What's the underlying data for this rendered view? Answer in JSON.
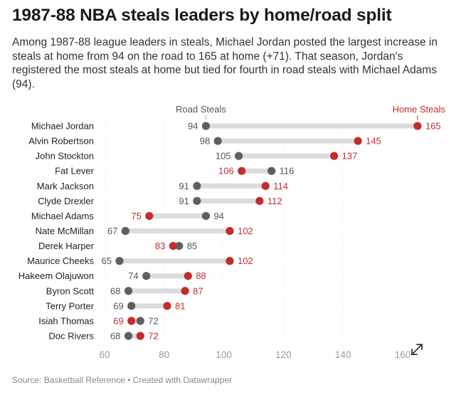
{
  "header": {
    "title": "1987-88 NBA steals leaders by home/road split",
    "subtitle": "Among 1987-88 league leaders in steals, Michael Jordan posted the largest increase in steals at home from 94 on the road to 165 at home (+71). That season, Jordan's registered the most steals at home but tied for fourth in road steals with Michael Adams (94)."
  },
  "footer": {
    "source": "Source: Basketball Reference • Created with Datawrapper"
  },
  "colors": {
    "road": "#5f5f5f",
    "home": "#c42b2b",
    "bar": "#dcdcdc",
    "axis_text": "#9a9a9a"
  },
  "chart_data": {
    "type": "dot-range",
    "title": "1987-88 NBA steals leaders by home/road split",
    "series": [
      {
        "name": "Road Steals",
        "key": "road"
      },
      {
        "name": "Home Steals",
        "key": "home"
      }
    ],
    "x_ticks": [
      60,
      80,
      100,
      120,
      140,
      160
    ],
    "xlim": [
      60,
      170
    ],
    "players": [
      {
        "name": "Michael Jordan",
        "road": 94,
        "home": 165
      },
      {
        "name": "Alvin Robertson",
        "road": 98,
        "home": 145
      },
      {
        "name": "John Stockton",
        "road": 105,
        "home": 137
      },
      {
        "name": "Fat Lever",
        "road": 116,
        "home": 106
      },
      {
        "name": "Mark Jackson",
        "road": 91,
        "home": 114
      },
      {
        "name": "Clyde Drexler",
        "road": 91,
        "home": 112
      },
      {
        "name": "Michael Adams",
        "road": 94,
        "home": 75
      },
      {
        "name": "Nate McMillan",
        "road": 67,
        "home": 102
      },
      {
        "name": "Derek Harper",
        "road": 85,
        "home": 83
      },
      {
        "name": "Maurice Cheeks",
        "road": 65,
        "home": 102
      },
      {
        "name": "Hakeem Olajuwon",
        "road": 74,
        "home": 88
      },
      {
        "name": "Byron Scott",
        "road": 68,
        "home": 87
      },
      {
        "name": "Terry Porter",
        "road": 69,
        "home": 81
      },
      {
        "name": "Isiah Thomas",
        "road": 72,
        "home": 69
      },
      {
        "name": "Doc Rivers",
        "road": 68,
        "home": 72
      }
    ]
  }
}
